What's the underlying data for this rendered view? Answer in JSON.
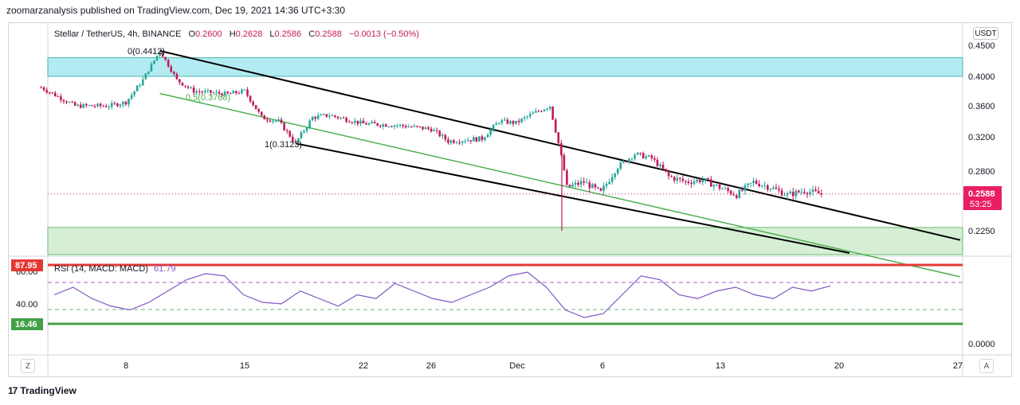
{
  "header": {
    "publisher_text": "zoomarzanalysis published on TradingView.com, Dec 19, 2021 14:36 UTC+3:30"
  },
  "legend": {
    "symbol": "Stellar / TetherUS, 4h, BINANCE",
    "o_label": "O",
    "o": "0.2600",
    "h_label": "H",
    "h": "0.2628",
    "l_label": "L",
    "l": "0.2586",
    "c_label": "C",
    "c": "0.2588",
    "change": "−0.0013 (−0.50%)"
  },
  "currency_button": "USDT",
  "price_axis": {
    "ticks": [
      "0.4500",
      "0.4000",
      "0.3600",
      "0.3200",
      "0.2800",
      "0.2250"
    ]
  },
  "last_price": {
    "value": "0.2588",
    "countdown": "53:25"
  },
  "fib_labels": {
    "top": "0(0.4412)",
    "mid": "0.5(0.3768)",
    "bottom": "1(0.3123)"
  },
  "rsi": {
    "legend": "RSI (14, MACD: MACD)",
    "value": "61.79",
    "badge_top": "87.95",
    "badge_bottom": "16.46",
    "axis_top": "60.00",
    "axis_mid": "40.00",
    "axis_zero": "0.0000"
  },
  "time_axis": {
    "ticks": [
      "8",
      "15",
      "22",
      "26",
      "Dec",
      "6",
      "13",
      "20",
      "27"
    ]
  },
  "corners": {
    "left": "Z",
    "right": "A"
  },
  "footer": {
    "brand": "TradingView"
  },
  "colors": {
    "up": "#26a69a",
    "down": "#c2185b",
    "accent": "#e91e63",
    "channel": "#000000",
    "midline": "#4caf50",
    "resistance_zone": "#b2ebf2",
    "support_zone": "#d6efd4",
    "rsi_line": "#7e57c2"
  },
  "chart_data": {
    "type": "candlestick",
    "symbol": "XLM/USDT",
    "interval": "4h",
    "ylim": [
      0.2,
      0.45
    ],
    "price_series": [
      {
        "date": "Nov 3",
        "price": 0.385
      },
      {
        "date": "Nov 5",
        "price": 0.36
      },
      {
        "date": "Nov 7",
        "price": 0.36
      },
      {
        "date": "Nov 8",
        "price": 0.365
      },
      {
        "date": "Nov 9",
        "price": 0.395
      },
      {
        "date": "Nov 10",
        "price": 0.4412
      },
      {
        "date": "Nov 11",
        "price": 0.395
      },
      {
        "date": "Nov 12",
        "price": 0.38
      },
      {
        "date": "Nov 13",
        "price": 0.378
      },
      {
        "date": "Nov 14",
        "price": 0.376
      },
      {
        "date": "Nov 15",
        "price": 0.38
      },
      {
        "date": "Nov 16",
        "price": 0.345
      },
      {
        "date": "Nov 17",
        "price": 0.34
      },
      {
        "date": "Nov 18",
        "price": 0.3123
      },
      {
        "date": "Nov 19",
        "price": 0.345
      },
      {
        "date": "Nov 20",
        "price": 0.348
      },
      {
        "date": "Nov 22",
        "price": 0.337
      },
      {
        "date": "Nov 24",
        "price": 0.335
      },
      {
        "date": "Nov 26",
        "price": 0.33
      },
      {
        "date": "Nov 27",
        "price": 0.315
      },
      {
        "date": "Nov 29",
        "price": 0.318
      },
      {
        "date": "Nov 30",
        "price": 0.34
      },
      {
        "date": "Dec 1",
        "price": 0.338
      },
      {
        "date": "Dec 2",
        "price": 0.35
      },
      {
        "date": "Dec 3",
        "price": 0.36
      },
      {
        "date": "Dec 4",
        "price": 0.265
      },
      {
        "date": "Dec 5",
        "price": 0.27
      },
      {
        "date": "Dec 6",
        "price": 0.26
      },
      {
        "date": "Dec 7",
        "price": 0.285
      },
      {
        "date": "Dec 8",
        "price": 0.3
      },
      {
        "date": "Dec 9",
        "price": 0.295
      },
      {
        "date": "Dec 10",
        "price": 0.275
      },
      {
        "date": "Dec 11",
        "price": 0.27
      },
      {
        "date": "Dec 12",
        "price": 0.272
      },
      {
        "date": "Dec 13",
        "price": 0.265
      },
      {
        "date": "Dec 14",
        "price": 0.258
      },
      {
        "date": "Dec 15",
        "price": 0.27
      },
      {
        "date": "Dec 16",
        "price": 0.265
      },
      {
        "date": "Dec 17",
        "price": 0.258
      },
      {
        "date": "Dec 18",
        "price": 0.262
      },
      {
        "date": "Dec 19",
        "price": 0.2588
      }
    ],
    "wick_low": {
      "date": "Dec 4",
      "price": 0.225
    },
    "zones": [
      {
        "name": "resistance",
        "from": 0.4,
        "to": 0.43
      },
      {
        "name": "support",
        "from": 0.2,
        "to": 0.228
      }
    ],
    "channel": {
      "upper": [
        {
          "date": "Nov 10",
          "price": 0.4412
        },
        {
          "date": "Dec 20",
          "price": 0.243
        }
      ],
      "mid": [
        {
          "date": "Nov 10",
          "price": 0.3768
        },
        {
          "date": "Dec 20",
          "price": 0.206
        }
      ],
      "lower": [
        {
          "date": "Nov 18",
          "price": 0.3123
        },
        {
          "date": "Dec 20",
          "price": 0.204
        }
      ]
    },
    "rsi_series": [
      50,
      60,
      45,
      35,
      30,
      40,
      55,
      70,
      78,
      75,
      50,
      40,
      38,
      55,
      45,
      35,
      50,
      45,
      65,
      55,
      45,
      40,
      50,
      60,
      75,
      80,
      60,
      30,
      20,
      25,
      50,
      75,
      70,
      50,
      45,
      55,
      60,
      50,
      45,
      60,
      55,
      61.79
    ],
    "rsi_levels": {
      "upper": 87.95,
      "lower": 16.46
    }
  }
}
